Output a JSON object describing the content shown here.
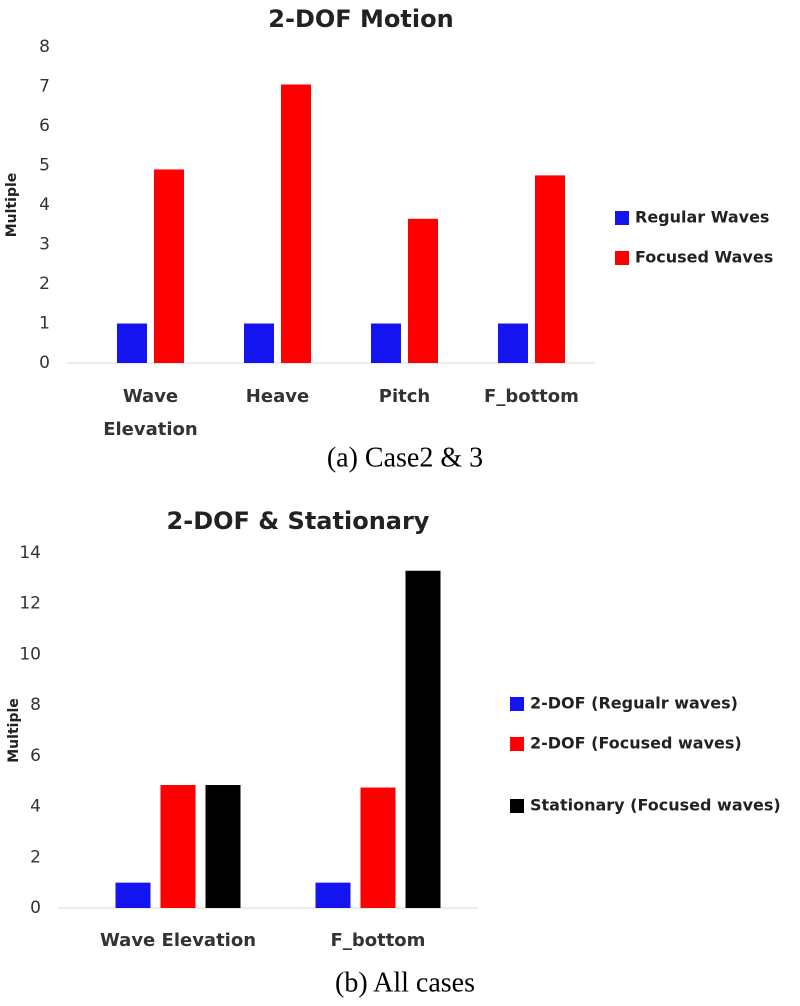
{
  "chart_data": [
    {
      "type": "bar",
      "title": "2-DOF Motion",
      "y_label": "Multiple",
      "caption": "(a)  Case2  &  3",
      "categories": [
        "Wave Elevation",
        "Heave",
        "Pitch",
        "F_bottom"
      ],
      "series": [
        {
          "name": "Regular Waves",
          "color": "#1414f0",
          "values": [
            1,
            1,
            1,
            1
          ]
        },
        {
          "name": "Focused Waves",
          "color": "#ff0000",
          "values": [
            4.9,
            7.05,
            3.65,
            4.75
          ]
        }
      ],
      "ylim": [
        0,
        8
      ],
      "yticks": [
        0,
        1,
        2,
        3,
        4,
        5,
        6,
        7,
        8
      ],
      "legend": "right"
    },
    {
      "type": "bar",
      "title": "2-DOF & Stationary",
      "y_label": "Multiple",
      "caption": "(b)  All  cases",
      "categories": [
        "Wave Elevation",
        "F_bottom"
      ],
      "series": [
        {
          "name": "2-DOF (Regualr waves)",
          "color": "#1414f0",
          "values": [
            1,
            1
          ]
        },
        {
          "name": "2-DOF (Focused waves)",
          "color": "#ff0000",
          "values": [
            4.85,
            4.75
          ]
        },
        {
          "name": "Stationary (Focused waves)",
          "color": "#000000",
          "values": [
            4.85,
            13.3
          ]
        }
      ],
      "ylim": [
        0,
        14
      ],
      "yticks": [
        0,
        2,
        4,
        6,
        8,
        10,
        12,
        14
      ],
      "legend": "right"
    }
  ]
}
